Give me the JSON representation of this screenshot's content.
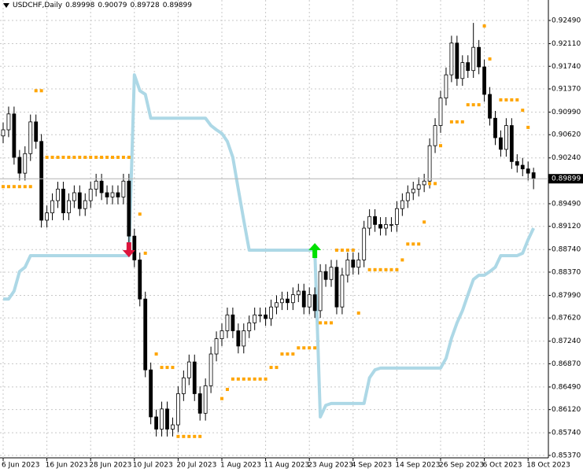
{
  "chart_data": {
    "type": "candlestick",
    "title": "USDCHF,Daily",
    "categories": [
      "6 Jun 2023",
      null,
      null,
      null,
      null,
      null,
      null,
      null,
      "16 Jun 2023",
      null,
      null,
      null,
      null,
      null,
      null,
      null,
      "28 Jun 2023",
      null,
      null,
      null,
      null,
      null,
      null,
      null,
      "10 Jul 2023",
      null,
      null,
      null,
      null,
      null,
      null,
      null,
      "20 Jul 2023",
      null,
      null,
      null,
      null,
      null,
      null,
      null,
      "1 Aug 2023",
      null,
      null,
      null,
      null,
      null,
      null,
      null,
      "11 Aug 2023",
      null,
      null,
      null,
      null,
      null,
      null,
      null,
      "23 Aug 2023",
      null,
      null,
      null,
      null,
      null,
      null,
      null,
      "4 Sep 2023",
      null,
      null,
      null,
      null,
      null,
      null,
      null,
      "14 Sep 2023",
      null,
      null,
      null,
      null,
      null,
      null,
      null,
      "26 Sep 2023",
      null,
      null,
      null,
      null,
      null,
      null,
      null,
      "6 Oct 2023",
      null,
      null,
      null,
      null,
      null,
      null,
      null,
      "18 Oct 2023",
      null
    ],
    "open": [
      0.906,
      0.907,
      0.9096,
      0.9025,
      0.8999,
      0.9031,
      0.9083,
      0.9051,
      0.8922,
      0.8934,
      0.8954,
      0.8973,
      0.8934,
      0.8954,
      0.8967,
      0.8941,
      0.8954,
      0.8973,
      0.8986,
      0.8967,
      0.896,
      0.8967,
      0.896,
      0.8986,
      0.8896,
      0.8857,
      0.8793,
      0.8677,
      0.86,
      0.858,
      0.8613,
      0.858,
      0.8587,
      0.8638,
      0.8664,
      0.869,
      0.8638,
      0.8606,
      0.8651,
      0.8703,
      0.8728,
      0.8741,
      0.8767,
      0.8741,
      0.8716,
      0.8741,
      0.8754,
      0.8767,
      0.8767,
      0.8761,
      0.878,
      0.8787,
      0.8793,
      0.8787,
      0.88,
      0.8806,
      0.878,
      0.88,
      0.8774,
      0.8838,
      0.8825,
      0.8845,
      0.878,
      0.8832,
      0.8857,
      0.8845,
      0.8857,
      0.8909,
      0.8928,
      0.8915,
      0.8909,
      0.8915,
      0.8915,
      0.8941,
      0.8954,
      0.8967,
      0.8973,
      0.898,
      0.8986,
      0.9044,
      0.9077,
      0.9122,
      0.916,
      0.9212,
      0.9154,
      0.918,
      0.9167,
      0.9205,
      0.9173,
      0.9128,
      0.9089,
      0.9057,
      0.9038,
      0.9077,
      0.9018,
      0.9012,
      0.9006,
      0.89998
    ],
    "high": [
      0.9082,
      0.9108,
      0.9108,
      0.9037,
      0.9043,
      0.9095,
      0.9095,
      0.9063,
      0.8946,
      0.8966,
      0.8985,
      0.8985,
      0.8966,
      0.8979,
      0.8979,
      0.8966,
      0.8985,
      0.8998,
      0.8998,
      0.8979,
      0.8979,
      0.8979,
      0.8998,
      0.8998,
      0.8908,
      0.8869,
      0.8805,
      0.8689,
      0.8612,
      0.8625,
      0.8625,
      0.8599,
      0.865,
      0.8676,
      0.8702,
      0.8702,
      0.865,
      0.8663,
      0.8715,
      0.874,
      0.8753,
      0.8779,
      0.8779,
      0.8753,
      0.8753,
      0.8766,
      0.8779,
      0.8779,
      0.8779,
      0.8792,
      0.8799,
      0.8805,
      0.8805,
      0.8812,
      0.8818,
      0.8818,
      0.8812,
      0.8812,
      0.885,
      0.885,
      0.8857,
      0.8857,
      0.8844,
      0.8869,
      0.8869,
      0.8869,
      0.8921,
      0.894,
      0.894,
      0.8927,
      0.8927,
      0.8927,
      0.8953,
      0.8966,
      0.8979,
      0.8985,
      0.8992,
      0.8998,
      0.9056,
      0.9089,
      0.9134,
      0.9172,
      0.9224,
      0.9224,
      0.9192,
      0.9192,
      0.9245,
      0.9217,
      0.9185,
      0.914,
      0.9101,
      0.9069,
      0.9089,
      0.9089,
      0.903,
      0.9024,
      0.9018,
      0.90079
    ],
    "low": [
      0.9048,
      0.9058,
      0.9013,
      0.8987,
      0.8987,
      0.9019,
      0.9039,
      0.891,
      0.891,
      0.8922,
      0.8942,
      0.8922,
      0.8922,
      0.8942,
      0.8929,
      0.8929,
      0.8942,
      0.8961,
      0.8955,
      0.8948,
      0.8948,
      0.8948,
      0.8948,
      0.8884,
      0.8845,
      0.8781,
      0.8665,
      0.8588,
      0.8568,
      0.8568,
      0.8568,
      0.8568,
      0.8575,
      0.8626,
      0.8652,
      0.8626,
      0.8594,
      0.8594,
      0.8639,
      0.8691,
      0.8716,
      0.8729,
      0.8729,
      0.8704,
      0.8704,
      0.8729,
      0.8742,
      0.8755,
      0.8749,
      0.8749,
      0.8768,
      0.8775,
      0.8775,
      0.8775,
      0.8788,
      0.8768,
      0.8768,
      0.8762,
      0.8762,
      0.8813,
      0.8813,
      0.8768,
      0.8768,
      0.882,
      0.8833,
      0.8833,
      0.8845,
      0.8897,
      0.8903,
      0.8897,
      0.8897,
      0.8903,
      0.8903,
      0.8929,
      0.8942,
      0.8955,
      0.8961,
      0.8968,
      0.8974,
      0.9032,
      0.9065,
      0.911,
      0.9148,
      0.9142,
      0.9142,
      0.9155,
      0.9155,
      0.9161,
      0.9116,
      0.9077,
      0.9045,
      0.9026,
      0.9026,
      0.9006,
      0.9,
      0.8994,
      0.8987,
      0.89728
    ],
    "close": [
      0.907,
      0.9096,
      0.9025,
      0.8999,
      0.9031,
      0.9083,
      0.9051,
      0.8922,
      0.8934,
      0.8954,
      0.8973,
      0.8934,
      0.8954,
      0.8967,
      0.8941,
      0.8954,
      0.8973,
      0.8986,
      0.8967,
      0.896,
      0.8967,
      0.896,
      0.8986,
      0.8896,
      0.8857,
      0.8793,
      0.8677,
      0.86,
      0.858,
      0.8613,
      0.858,
      0.8587,
      0.8638,
      0.8664,
      0.869,
      0.8638,
      0.8606,
      0.8651,
      0.8703,
      0.8728,
      0.8741,
      0.8767,
      0.8741,
      0.8716,
      0.8741,
      0.8754,
      0.8767,
      0.8767,
      0.8761,
      0.878,
      0.8787,
      0.8793,
      0.8787,
      0.88,
      0.8806,
      0.878,
      0.88,
      0.8774,
      0.8838,
      0.8825,
      0.8845,
      0.878,
      0.8832,
      0.8857,
      0.8845,
      0.8857,
      0.8909,
      0.8928,
      0.8915,
      0.8909,
      0.8915,
      0.8915,
      0.8941,
      0.8954,
      0.8967,
      0.8973,
      0.898,
      0.8986,
      0.9044,
      0.9077,
      0.9122,
      0.916,
      0.9212,
      0.9154,
      0.918,
      0.9167,
      0.9205,
      0.9173,
      0.9128,
      0.9089,
      0.9057,
      0.9038,
      0.9077,
      0.9018,
      0.9012,
      0.9006,
      0.8999,
      0.89899
    ],
    "indicators": [
      {
        "type": "line",
        "color": "#add8e6",
        "values": [
          0.8793,
          0.8793,
          0.8806,
          0.8838,
          0.8845,
          0.8864,
          0.8864,
          0.8864,
          0.8864,
          0.8864,
          0.8864,
          0.8864,
          0.8864,
          0.8864,
          0.8864,
          0.8864,
          0.8864,
          0.8864,
          0.8864,
          0.8864,
          0.8864,
          0.8864,
          0.8864,
          0.8864,
          0.916,
          0.9134,
          0.9128,
          0.9089,
          0.9089,
          0.9089,
          0.9089,
          0.9089,
          0.9089,
          0.9089,
          0.9089,
          0.9089,
          0.9089,
          0.9089,
          0.9077,
          0.907,
          0.9064,
          0.9051,
          0.9025,
          0.8973,
          0.8922,
          0.8873,
          0.8873,
          0.8873,
          0.8873,
          0.8873,
          0.8873,
          0.8873,
          0.8873,
          0.8873,
          0.8873,
          0.8873,
          0.8873,
          0.8873,
          0.86,
          0.8619,
          0.8622,
          0.8622,
          0.8622,
          0.8622,
          0.8622,
          0.8622,
          0.8622,
          0.8664,
          0.8677,
          0.868,
          0.868,
          0.868,
          0.868,
          0.868,
          0.868,
          0.868,
          0.868,
          0.868,
          0.868,
          0.868,
          0.868,
          0.8696,
          0.8729,
          0.8754,
          0.8774,
          0.88,
          0.8825,
          0.8832,
          0.8832,
          0.8838,
          0.8845,
          0.8864,
          0.8864,
          0.8864,
          0.8864,
          0.8868,
          0.889,
          0.8909
        ]
      },
      {
        "type": "dots",
        "color": "#ffa500",
        "values": [
          0.8977,
          0.8977,
          0.8977,
          0.8977,
          0.8977,
          0.8977,
          0.9134,
          0.9134,
          0.9025,
          0.9025,
          0.9025,
          0.9025,
          0.9025,
          0.9025,
          0.9025,
          0.9025,
          0.9025,
          0.9025,
          0.9025,
          0.9025,
          0.9025,
          0.9025,
          0.9025,
          0.9025,
          null,
          0.8932,
          0.8868,
          null,
          0.8703,
          0.8681,
          0.8681,
          0.8681,
          0.8568,
          0.8568,
          0.8568,
          0.8568,
          0.8568,
          null,
          null,
          null,
          0.863,
          0.8645,
          0.8662,
          0.8662,
          0.8662,
          0.8662,
          0.8662,
          0.8662,
          0.8662,
          0.8681,
          0.8681,
          0.8703,
          0.8703,
          0.8703,
          0.8713,
          0.8713,
          0.8713,
          0.8713,
          0.8754,
          0.8754,
          0.8754,
          0.8873,
          0.8873,
          0.8873,
          0.8873,
          0.877,
          null,
          0.8841,
          0.8841,
          0.8841,
          0.8841,
          0.8841,
          0.8841,
          0.8857,
          0.8883,
          0.8883,
          0.8883,
          0.8919,
          0.8982,
          0.8982,
          0.9044,
          null,
          0.9083,
          0.9083,
          0.9083,
          0.9111,
          0.9111,
          0.9111,
          0.924,
          0.9186,
          null,
          0.9119,
          0.9119,
          0.9119,
          0.9119,
          0.9102,
          0.9074,
          null
        ]
      }
    ],
    "signals": [
      {
        "at": 23,
        "price": 0.8873,
        "direction": "down",
        "color": "#dc143c"
      },
      {
        "at": 57,
        "price": 0.8873,
        "direction": "up",
        "color": "#00e000"
      }
    ],
    "up_color": "#ffffff",
    "down_color": "#000000",
    "ylim": [
      0.8533,
      0.92825
    ],
    "yticks": [
      {
        "value": 0.9249,
        "label": "0.92490"
      },
      {
        "value": 0.9211,
        "label": "0.92110"
      },
      {
        "value": 0.9174,
        "label": "0.91740"
      },
      {
        "value": 0.9137,
        "label": "0.91370"
      },
      {
        "value": 0.9099,
        "label": "0.90990"
      },
      {
        "value": 0.9062,
        "label": "0.90620"
      },
      {
        "value": 0.9024,
        "label": "0.90240"
      },
      {
        "value": 0.8949,
        "label": "0.89490"
      },
      {
        "value": 0.8912,
        "label": "0.89120"
      },
      {
        "value": 0.8874,
        "label": "0.88740"
      },
      {
        "value": 0.8837,
        "label": "0.88370"
      },
      {
        "value": 0.8799,
        "label": "0.87990"
      },
      {
        "value": 0.8762,
        "label": "0.87620"
      },
      {
        "value": 0.8724,
        "label": "0.87240"
      },
      {
        "value": 0.8687,
        "label": "0.86870"
      },
      {
        "value": 0.8649,
        "label": "0.86490"
      },
      {
        "value": 0.8612,
        "label": "0.86120"
      },
      {
        "value": 0.8574,
        "label": "0.85740"
      },
      {
        "value": 0.8537,
        "label": "0.85370"
      }
    ],
    "grid": true
  }
}
